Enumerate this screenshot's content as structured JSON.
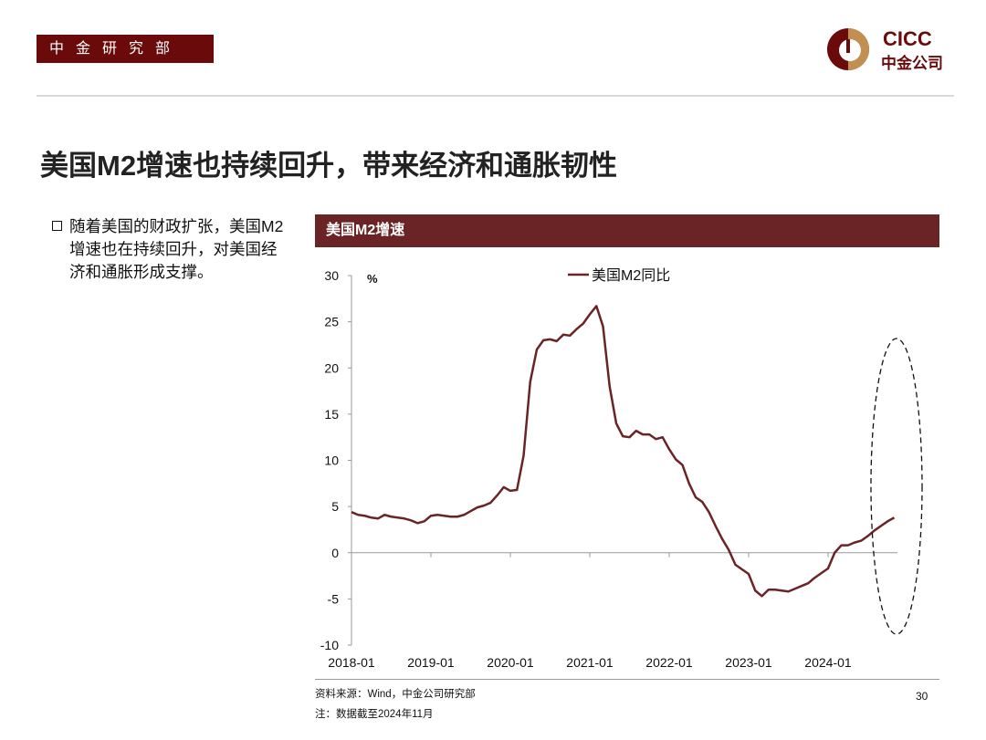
{
  "header": {
    "department": "中金研究部",
    "logo_text": "CICC",
    "logo_cn": "中金公司",
    "brand_color": "#6b0a0a",
    "logo_accent": "#c19050"
  },
  "title": "美国M2增速也持续回升，带来经济和通胀韧性",
  "bullet": "随着美国的财政扩张，美国M2增速也在持续回升，对美国经济和通胀形成支撑。",
  "chart_header": "美国M2增速",
  "chart_data": {
    "type": "line",
    "title": "",
    "ylabel": "%",
    "ylim": [
      -10,
      30
    ],
    "yticks": [
      "30",
      "25",
      "20",
      "15",
      "10",
      "5",
      "0",
      "-5",
      "-10"
    ],
    "xticks": [
      "2018-01",
      "2019-01",
      "2020-01",
      "2021-01",
      "2022-01",
      "2023-01",
      "2024-01"
    ],
    "x_start": "2018-01",
    "x_end": "2024-11",
    "grid": false,
    "legend_position": "top-center",
    "annotation": "dashed ellipse highlighting 2024 rebound",
    "series": [
      {
        "name": "美国M2同比",
        "color": "#6b2426",
        "values": [
          4.4,
          4.1,
          4.0,
          3.8,
          3.7,
          4.1,
          3.9,
          3.8,
          3.7,
          3.5,
          3.2,
          3.4,
          4.0,
          4.1,
          4.0,
          3.9,
          3.9,
          4.1,
          4.5,
          4.9,
          5.1,
          5.4,
          6.2,
          7.1,
          6.7,
          6.8,
          10.5,
          18.5,
          22.0,
          23.0,
          23.1,
          22.9,
          23.6,
          23.5,
          24.2,
          24.8,
          25.8,
          26.7,
          24.5,
          18.0,
          14.0,
          12.6,
          12.5,
          13.2,
          12.8,
          12.8,
          12.3,
          12.5,
          11.2,
          10.1,
          9.5,
          7.5,
          6.0,
          5.5,
          4.4,
          2.9,
          1.5,
          0.3,
          -1.3,
          -1.8,
          -2.3,
          -4.1,
          -4.7,
          -4.0,
          -4.0,
          -4.1,
          -4.2,
          -3.9,
          -3.6,
          -3.3,
          -2.7,
          -2.2,
          -1.7,
          0.0,
          0.8,
          0.8,
          1.1,
          1.3,
          1.8,
          2.4,
          2.9,
          3.4,
          3.8
        ]
      }
    ]
  },
  "footer": {
    "source": "资料来源：Wind，中金公司研究部",
    "note": "注：数据截至2024年11月",
    "page": "30"
  }
}
